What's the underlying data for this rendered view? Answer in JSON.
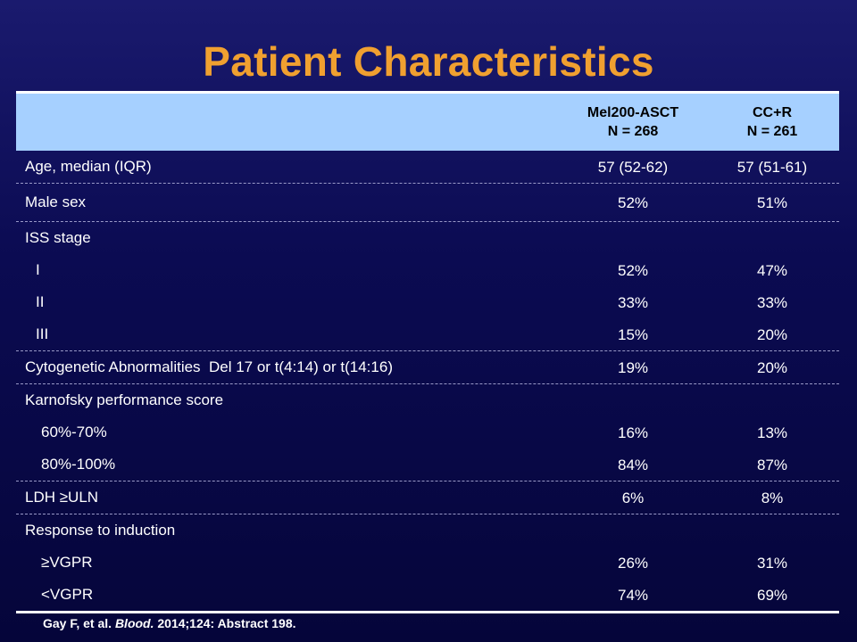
{
  "title": "Patient Characteristics",
  "header": {
    "col_a_line1": "Mel200-ASCT",
    "col_a_line2": "N = 268",
    "col_b_line1": "CC+R",
    "col_b_line2": "N = 261"
  },
  "rows": {
    "age": {
      "label": "Age, median (IQR)",
      "a": "57 (52-62)",
      "b": "57 (51-61)"
    },
    "sex": {
      "label": "Male sex",
      "a": "52%",
      "b": "51%"
    },
    "iss": {
      "label": "ISS stage"
    },
    "iss1": {
      "label": "I",
      "a": "52%",
      "b": "47%"
    },
    "iss2": {
      "label": "II",
      "a": "33%",
      "b": "33%"
    },
    "iss3": {
      "label": "III",
      "a": "15%",
      "b": "20%"
    },
    "cyto": {
      "label": "Cytogenetic Abnormalities  Del 17 or t(4:14) or t(14:16)",
      "a": "19%",
      "b": "20%"
    },
    "kps": {
      "label": "Karnofsky performance score"
    },
    "kps1": {
      "label": "60%-70%",
      "a": "16%",
      "b": "13%"
    },
    "kps2": {
      "label": "80%-100%",
      "a": "84%",
      "b": "87%"
    },
    "ldh": {
      "label": "LDH ≥ULN",
      "a": "6%",
      "b": "8%"
    },
    "resp": {
      "label": "Response to induction"
    },
    "resp1": {
      "label": "≥VGPR",
      "a": "26%",
      "b": "31%"
    },
    "resp2": {
      "label": "<VGPR",
      "a": "74%",
      "b": "69%"
    }
  },
  "footnote": {
    "prefix": "Gay F, et al. ",
    "journal": "Blood.",
    "suffix": " 2014;124: Abstract 198."
  }
}
